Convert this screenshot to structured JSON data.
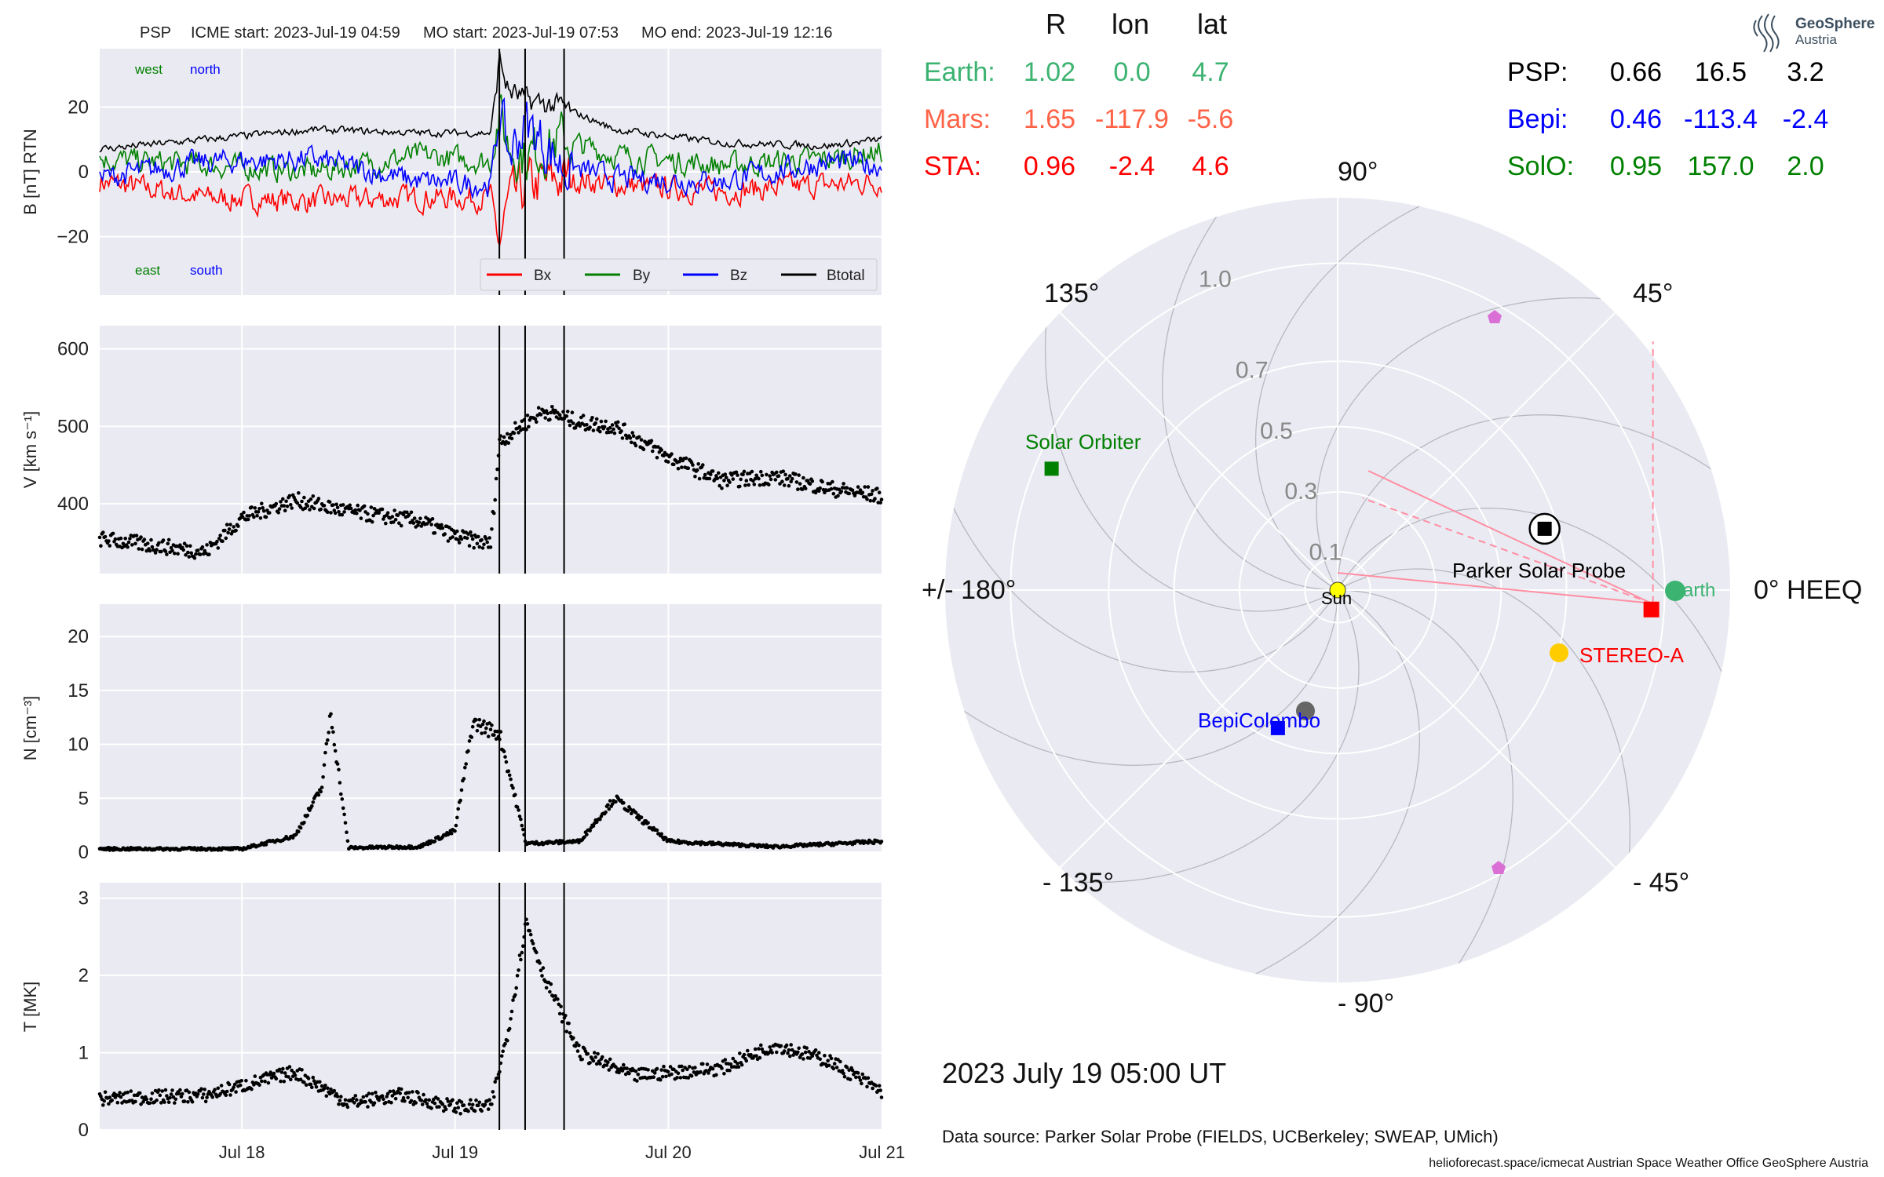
{
  "header": {
    "spacecraft": "PSP",
    "icme_start": "ICME start: 2023-Jul-19 04:59",
    "mo_start": "MO start: 2023-Jul-19 07:53",
    "mo_end": "MO end: 2023-Jul-19 12:16"
  },
  "colors": {
    "panel_bg": "#EAEAF2",
    "bx": "#ff0000",
    "by": "#008000",
    "bz": "#0000ff",
    "btotal": "#000000",
    "earth": "#3cb371",
    "mars": "#ff6347",
    "sta": "#ff0000",
    "psp": "#000000",
    "bepi": "#0000ff",
    "solo": "#008000",
    "sun": "#ffff00",
    "pentagon": "#da70d6",
    "field_line": "#ffb6c1"
  },
  "chart_data": [
    {
      "type": "line",
      "title": "",
      "ylabel": "B [nT] RTN",
      "ylim": [
        -38,
        38
      ],
      "yticks": [
        "20",
        "0",
        "−20"
      ],
      "xlim": [
        "2023-07-17 08:00",
        "2023-07-21 00:00"
      ],
      "xticks": [
        "Jul 18",
        "Jul 19",
        "Jul 20",
        "Jul 21"
      ],
      "annotations": {
        "west": "west",
        "north": "north",
        "east": "east",
        "south": "south"
      },
      "legend_position": "lower right",
      "event_lines": [
        "2023-07-19 04:59",
        "2023-07-19 07:53",
        "2023-07-19 12:16"
      ],
      "series": [
        {
          "name": "Bx",
          "color": "#ff0000",
          "x": [
            "07-17 08:00",
            "07-17 20:00",
            "07-18 08:00",
            "07-18 20:00",
            "07-19 04:00",
            "07-19 05:00",
            "07-19 06:00",
            "07-19 08:00",
            "07-19 12:00",
            "07-19 18:00",
            "07-20 06:00",
            "07-20 18:00",
            "07-21 00:00"
          ],
          "values": [
            -3,
            -8,
            -9,
            -8,
            -8,
            -22,
            -10,
            -5,
            -2,
            -4,
            -6,
            -4,
            -3
          ]
        },
        {
          "name": "By",
          "color": "#008000",
          "x": [
            "07-17 08:00",
            "07-17 20:00",
            "07-18 08:00",
            "07-18 20:00",
            "07-19 04:00",
            "07-19 05:00",
            "07-19 06:00",
            "07-19 08:00",
            "07-19 12:00",
            "07-19 18:00",
            "07-20 06:00",
            "07-20 18:00",
            "07-21 00:00"
          ],
          "values": [
            4,
            2,
            0,
            5,
            3,
            18,
            8,
            5,
            10,
            5,
            2,
            4,
            6
          ]
        },
        {
          "name": "Bz",
          "color": "#0000ff",
          "x": [
            "07-17 08:00",
            "07-17 20:00",
            "07-18 08:00",
            "07-18 20:00",
            "07-19 04:00",
            "07-19 05:00",
            "07-19 06:00",
            "07-19 08:00",
            "07-19 12:00",
            "07-19 18:00",
            "07-20 06:00",
            "07-20 18:00",
            "07-21 00:00"
          ],
          "values": [
            -2,
            3,
            4,
            -3,
            -4,
            20,
            5,
            15,
            2,
            -2,
            -3,
            3,
            2
          ]
        },
        {
          "name": "Btotal",
          "color": "#000000",
          "x": [
            "07-17 08:00",
            "07-17 20:00",
            "07-18 08:00",
            "07-18 20:00",
            "07-19 04:00",
            "07-19 05:00",
            "07-19 06:00",
            "07-19 08:00",
            "07-19 12:00",
            "07-19 18:00",
            "07-20 06:00",
            "07-20 18:00",
            "07-21 00:00"
          ],
          "values": [
            7,
            10,
            13,
            12,
            12,
            35,
            25,
            22,
            20,
            13,
            9,
            8,
            10
          ]
        }
      ]
    },
    {
      "type": "scatter",
      "ylabel": "V [km s⁻¹]",
      "ylim": [
        310,
        630
      ],
      "yticks": [
        "600",
        "500",
        "400"
      ],
      "xlim": [
        "2023-07-17 08:00",
        "2023-07-21 00:00"
      ],
      "xticks": [
        "Jul 18",
        "Jul 19",
        "Jul 20",
        "Jul 21"
      ],
      "event_lines": [
        "2023-07-19 04:59",
        "2023-07-19 07:53",
        "2023-07-19 12:16"
      ],
      "series": [
        {
          "name": "",
          "color": "#000000",
          "x": [
            "07-17 08:00",
            "07-17 20:00",
            "07-18 00:00",
            "07-18 06:00",
            "07-18 12:00",
            "07-18 20:00",
            "07-19 00:00",
            "07-19 04:00",
            "07-19 05:00",
            "07-19 08:00",
            "07-19 10:00",
            "07-19 14:00",
            "07-19 18:00",
            "07-20 00:00",
            "07-20 06:00",
            "07-20 12:00",
            "07-20 18:00",
            "07-21 00:00"
          ],
          "values": [
            355,
            338,
            382,
            405,
            390,
            378,
            358,
            348,
            480,
            505,
            520,
            505,
            500,
            460,
            430,
            435,
            420,
            410
          ]
        }
      ]
    },
    {
      "type": "scatter",
      "ylabel": "N [cm⁻³]",
      "ylim": [
        0,
        23
      ],
      "yticks": [
        "20",
        "15",
        "10",
        "5",
        "0"
      ],
      "xlim": [
        "2023-07-17 08:00",
        "2023-07-21 00:00"
      ],
      "xticks": [
        "Jul 18",
        "Jul 19",
        "Jul 20",
        "Jul 21"
      ],
      "event_lines": [
        "2023-07-19 04:59",
        "2023-07-19 07:53",
        "2023-07-19 12:16"
      ],
      "series": [
        {
          "name": "",
          "color": "#000000",
          "x": [
            "07-17 08:00",
            "07-18 00:00",
            "07-18 06:00",
            "07-18 09:00",
            "07-18 10:00",
            "07-18 12:00",
            "07-18 20:00",
            "07-19 00:00",
            "07-19 02:00",
            "07-19 05:00",
            "07-19 08:00",
            "07-19 14:00",
            "07-19 18:00",
            "07-20 00:00",
            "07-20 12:00",
            "07-21 00:00"
          ],
          "values": [
            0.3,
            0.3,
            1.5,
            6,
            13,
            0.4,
            0.5,
            2,
            12,
            11,
            0.8,
            1,
            5,
            1,
            0.5,
            1
          ]
        }
      ]
    },
    {
      "type": "scatter",
      "ylabel": "T [MK]",
      "ylim": [
        0,
        3.2
      ],
      "yticks": [
        "3",
        "2",
        "1",
        "0"
      ],
      "xlim": [
        "2023-07-17 08:00",
        "2023-07-21 00:00"
      ],
      "xticks": [
        "Jul 18",
        "Jul 19",
        "Jul 20",
        "Jul 21"
      ],
      "event_lines": [
        "2023-07-19 04:59",
        "2023-07-19 07:53",
        "2023-07-19 12:16"
      ],
      "series": [
        {
          "name": "",
          "color": "#000000",
          "x": [
            "07-17 08:00",
            "07-17 20:00",
            "07-18 06:00",
            "07-18 12:00",
            "07-18 18:00",
            "07-19 00:00",
            "07-19 04:00",
            "07-19 06:00",
            "07-19 08:00",
            "07-19 10:00",
            "07-19 14:00",
            "07-19 20:00",
            "07-20 06:00",
            "07-20 12:00",
            "07-20 18:00",
            "07-21 00:00"
          ],
          "values": [
            0.4,
            0.45,
            0.75,
            0.35,
            0.45,
            0.3,
            0.3,
            1.3,
            2.7,
            2.0,
            1.0,
            0.7,
            0.8,
            1.1,
            0.9,
            0.5
          ]
        }
      ]
    },
    {
      "type": "polar",
      "radial_ticks": [
        "0.1",
        "0.3",
        "0.5",
        "0.7",
        "1.0"
      ],
      "angle_labels": [
        "0° HEEQ",
        "45°",
        "90°",
        "135°",
        "+/- 180°",
        "- 135°",
        "- 90°",
        "- 45°"
      ],
      "objects": [
        {
          "name": "Sun",
          "r": 0,
          "lon": 0
        },
        {
          "name": "Earth",
          "r": 1.02,
          "lon": 0.0
        },
        {
          "name": "STEREO-A",
          "r": 0.96,
          "lon": -2.4
        },
        {
          "name": "Parker Solar Probe",
          "r": 0.66,
          "lon": 16.5
        },
        {
          "name": "BepiColombo",
          "r": 0.46,
          "lon": -113.4
        },
        {
          "name": "Solar Orbiter",
          "r": 0.95,
          "lon": 157.0
        }
      ]
    }
  ],
  "table": {
    "headers": [
      "R",
      "lon",
      "lat"
    ],
    "left": [
      {
        "name": "Earth:",
        "R": "1.02",
        "lon": "0.0",
        "lat": "4.7"
      },
      {
        "name": "Mars:",
        "R": "1.65",
        "lon": "-117.9",
        "lat": "-5.6"
      },
      {
        "name": "STA:",
        "R": "0.96",
        "lon": "-2.4",
        "lat": "4.6"
      }
    ],
    "right": [
      {
        "name": "PSP:",
        "R": "0.66",
        "lon": "16.5",
        "lat": "3.2"
      },
      {
        "name": "Bepi:",
        "R": "0.46",
        "lon": "-113.4",
        "lat": "-2.4"
      },
      {
        "name": "SolO:",
        "R": "0.95",
        "lon": "157.0",
        "lat": "2.0"
      }
    ]
  },
  "polar_labels": {
    "earth": "Earth",
    "stereo_a": "STEREO-A",
    "psp": "Parker Solar Probe",
    "bepi": "BepiColombo",
    "solo": "Solar Orbiter",
    "sun": "Sun"
  },
  "timestamp": "2023 July 19  05:00 UT",
  "data_source": "Data source: Parker Solar Probe (FIELDS, UCBerkeley; SWEAP, UMich)",
  "footer": "helioforecast.space/icmecat   Austrian Space Weather Office   GeoSphere Austria",
  "logo": {
    "line1": "GeoSphere",
    "line2": "Austria"
  }
}
